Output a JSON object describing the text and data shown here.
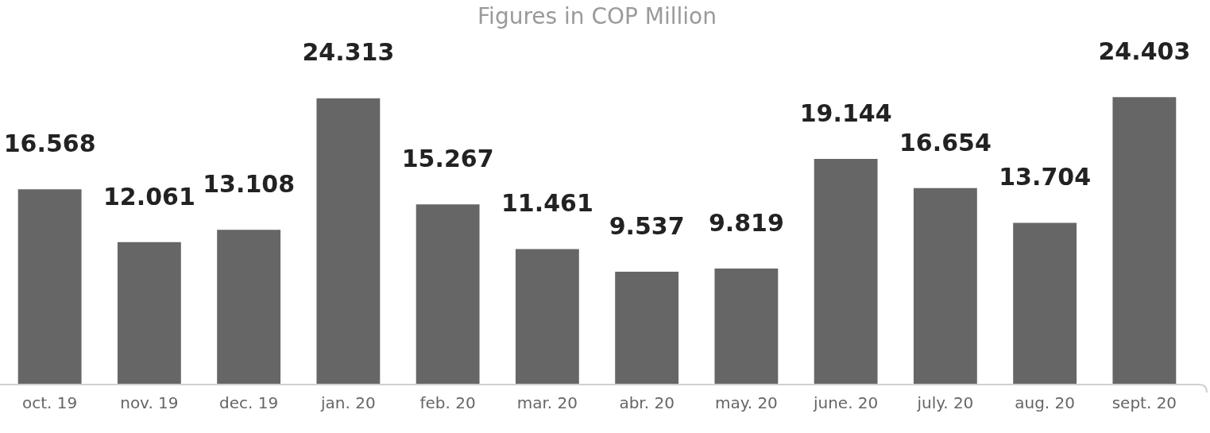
{
  "chart_data": {
    "type": "bar",
    "title": "Figures in COP Million",
    "categories": [
      "oct. 19",
      "nov. 19",
      "dec. 19",
      "jan. 20",
      "feb. 20",
      "mar. 20",
      "abr. 20",
      "may. 20",
      "june. 20",
      "july. 20",
      "aug. 20",
      "sept. 20"
    ],
    "values": [
      16.568,
      12.061,
      13.108,
      24.313,
      15.267,
      11.461,
      9.537,
      9.819,
      19.144,
      16.654,
      13.704,
      24.403
    ],
    "color": "#666666",
    "data_labels": true,
    "legend": false,
    "grid": false
  }
}
